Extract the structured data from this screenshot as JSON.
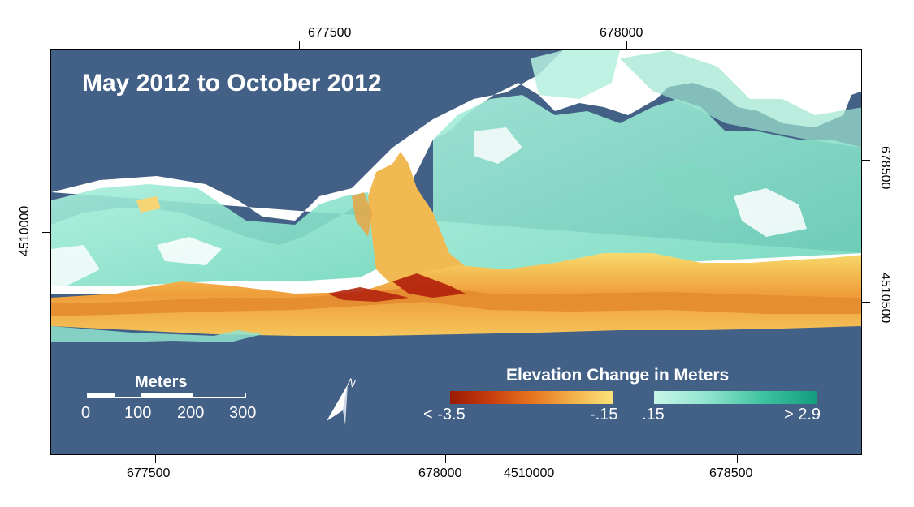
{
  "map": {
    "title": "May 2012 to October 2012",
    "top_axis": [
      "677500",
      "678000"
    ],
    "bottom_axis": [
      "677500",
      "678000",
      "4510000",
      "678500"
    ],
    "left_axis": [
      "4510000"
    ],
    "right_axis": [
      "678500",
      "4510500"
    ],
    "colors": {
      "water": "#436186",
      "land_white": "#ffffff",
      "gain_teal": "#8fe4ce",
      "loss_yellow": "#f6cf63",
      "loss_orange": "#e38a2f",
      "loss_red": "#b4250e"
    }
  },
  "legend": {
    "title": "Elevation Change in Meters",
    "loss_min_label": "< -3.5",
    "loss_max_label": "-.15",
    "gain_min_label": ".15",
    "gain_max_label": "> 2.9"
  },
  "scalebar": {
    "title": "Meters",
    "labels": [
      "0",
      "100",
      "200",
      "300"
    ]
  },
  "north_arrow": {
    "label": "N",
    "icon": "north-arrow-icon"
  }
}
